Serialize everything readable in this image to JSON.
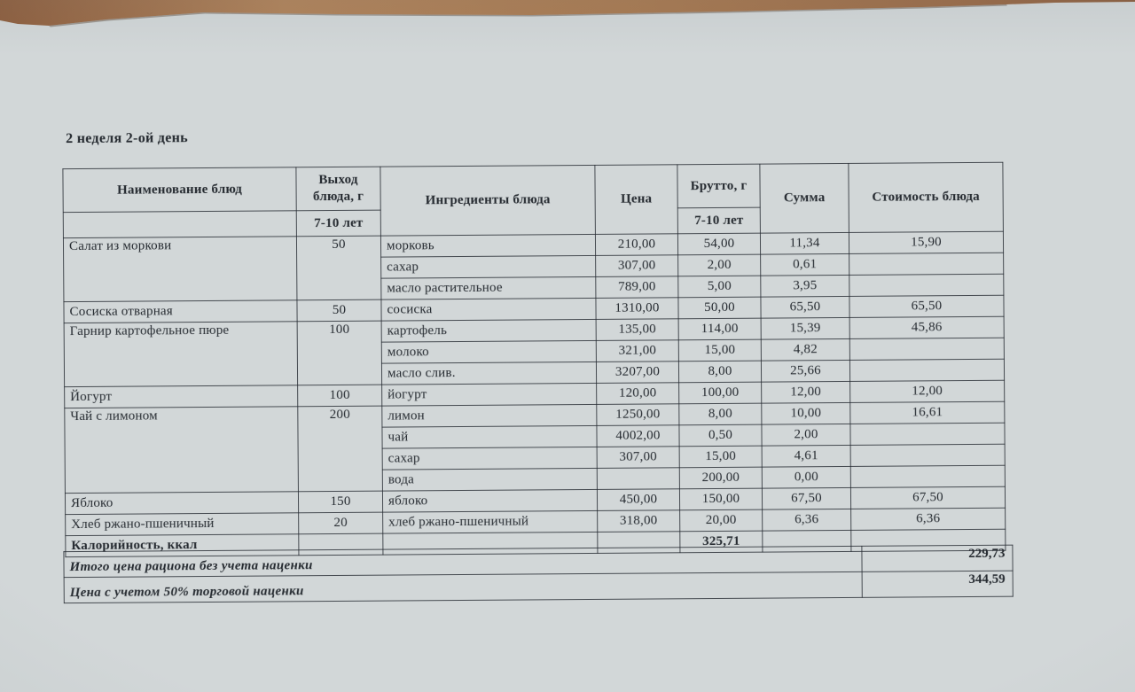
{
  "page_title": "2 неделя 2-ой день",
  "table": {
    "headers": {
      "name": "Наименование блюд",
      "name_sub": "",
      "output": "Выход блюда, г",
      "age_output": "7-10 лет",
      "ingredients": "Ингредиенты блюда",
      "price": "Цена",
      "gross": "Брутто, г",
      "age_gross": "7-10 лет",
      "sum": "Сумма",
      "dish_cost": "Стоимость блюда"
    },
    "rows": [
      {
        "cells": [
          {
            "t": "Салат из моркови",
            "rs": 3,
            "cls": "name vtop"
          },
          {
            "t": "50",
            "rs": 3,
            "cls": "cnum vtop"
          },
          {
            "t": "морковь",
            "cls": "ing"
          },
          {
            "t": "210,00",
            "cls": "cnum"
          },
          {
            "t": "54,00",
            "cls": "cnum"
          },
          {
            "t": "11,34",
            "cls": "cnum"
          },
          {
            "t": "15,90",
            "cls": "cnum"
          }
        ]
      },
      {
        "cells": [
          {
            "t": "сахар",
            "cls": "ing"
          },
          {
            "t": "307,00",
            "cls": "cnum"
          },
          {
            "t": "2,00",
            "cls": "cnum"
          },
          {
            "t": "0,61",
            "cls": "cnum"
          },
          {
            "t": "",
            "cls": "cnum"
          }
        ]
      },
      {
        "cells": [
          {
            "t": "масло растительное",
            "cls": "ing"
          },
          {
            "t": "789,00",
            "cls": "cnum"
          },
          {
            "t": "5,00",
            "cls": "cnum"
          },
          {
            "t": "3,95",
            "cls": "cnum"
          },
          {
            "t": "",
            "cls": "cnum"
          }
        ]
      },
      {
        "cells": [
          {
            "t": "Сосиска отварная",
            "cls": "name"
          },
          {
            "t": "50",
            "cls": "cnum"
          },
          {
            "t": "сосиска",
            "cls": "ing"
          },
          {
            "t": "1310,00",
            "cls": "cnum"
          },
          {
            "t": "50,00",
            "cls": "cnum"
          },
          {
            "t": "65,50",
            "cls": "cnum"
          },
          {
            "t": "65,50",
            "cls": "cnum"
          }
        ]
      },
      {
        "cells": [
          {
            "t": "Гарнир картофельное пюре",
            "rs": 3,
            "cls": "name vtop"
          },
          {
            "t": "100",
            "rs": 3,
            "cls": "cnum vtop"
          },
          {
            "t": "картофель",
            "cls": "ing"
          },
          {
            "t": "135,00",
            "cls": "cnum"
          },
          {
            "t": "114,00",
            "cls": "cnum"
          },
          {
            "t": "15,39",
            "cls": "cnum"
          },
          {
            "t": "45,86",
            "cls": "cnum"
          }
        ]
      },
      {
        "cells": [
          {
            "t": "молоко",
            "cls": "ing"
          },
          {
            "t": "321,00",
            "cls": "cnum"
          },
          {
            "t": "15,00",
            "cls": "cnum"
          },
          {
            "t": "4,82",
            "cls": "cnum"
          },
          {
            "t": "",
            "cls": "cnum"
          }
        ]
      },
      {
        "cells": [
          {
            "t": "масло слив.",
            "cls": "ing"
          },
          {
            "t": "3207,00",
            "cls": "cnum"
          },
          {
            "t": "8,00",
            "cls": "cnum"
          },
          {
            "t": "25,66",
            "cls": "cnum"
          },
          {
            "t": "",
            "cls": "cnum"
          }
        ]
      },
      {
        "cells": [
          {
            "t": "Йогурт",
            "cls": "name"
          },
          {
            "t": "100",
            "cls": "cnum"
          },
          {
            "t": "йогурт",
            "cls": "ing"
          },
          {
            "t": "120,00",
            "cls": "cnum"
          },
          {
            "t": "100,00",
            "cls": "cnum"
          },
          {
            "t": "12,00",
            "cls": "cnum"
          },
          {
            "t": "12,00",
            "cls": "cnum"
          }
        ]
      },
      {
        "cells": [
          {
            "t": "Чай с лимоном",
            "rs": 4,
            "cls": "name vtop"
          },
          {
            "t": "200",
            "rs": 4,
            "cls": "cnum vtop"
          },
          {
            "t": "лимон",
            "cls": "ing"
          },
          {
            "t": "1250,00",
            "cls": "cnum"
          },
          {
            "t": "8,00",
            "cls": "cnum"
          },
          {
            "t": "10,00",
            "cls": "cnum"
          },
          {
            "t": "16,61",
            "cls": "cnum"
          }
        ]
      },
      {
        "cells": [
          {
            "t": "чай",
            "cls": "ing"
          },
          {
            "t": "4002,00",
            "cls": "cnum"
          },
          {
            "t": "0,50",
            "cls": "cnum"
          },
          {
            "t": "2,00",
            "cls": "cnum"
          },
          {
            "t": "",
            "cls": "cnum"
          }
        ]
      },
      {
        "cells": [
          {
            "t": "сахар",
            "cls": "ing"
          },
          {
            "t": "307,00",
            "cls": "cnum"
          },
          {
            "t": "15,00",
            "cls": "cnum"
          },
          {
            "t": "4,61",
            "cls": "cnum"
          },
          {
            "t": "",
            "cls": "cnum"
          }
        ]
      },
      {
        "cells": [
          {
            "t": "вода",
            "cls": "ing"
          },
          {
            "t": "",
            "cls": "cnum"
          },
          {
            "t": "200,00",
            "cls": "cnum"
          },
          {
            "t": "0,00",
            "cls": "cnum"
          },
          {
            "t": "",
            "cls": "cnum"
          }
        ]
      },
      {
        "cells": [
          {
            "t": "Яблоко",
            "cls": "name"
          },
          {
            "t": "150",
            "cls": "cnum"
          },
          {
            "t": "яблоко",
            "cls": "ing"
          },
          {
            "t": "450,00",
            "cls": "cnum"
          },
          {
            "t": "150,00",
            "cls": "cnum"
          },
          {
            "t": "67,50",
            "cls": "cnum"
          },
          {
            "t": "67,50",
            "cls": "cnum"
          }
        ]
      },
      {
        "cells": [
          {
            "t": "Хлеб ржано-пшеничный",
            "cls": "name"
          },
          {
            "t": "20",
            "cls": "cnum"
          },
          {
            "t": "хлеб ржано-пшеничный",
            "cls": "ing"
          },
          {
            "t": "318,00",
            "cls": "cnum"
          },
          {
            "t": "20,00",
            "cls": "cnum"
          },
          {
            "t": "6,36",
            "cls": "cnum"
          },
          {
            "t": "6,36",
            "cls": "cnum"
          }
        ]
      },
      {
        "cells": [
          {
            "t": "Калорийность, ккал",
            "cls": "name bold"
          },
          {
            "t": "",
            "cls": "cnum"
          },
          {
            "t": "",
            "cls": "ing"
          },
          {
            "t": "",
            "cls": "cnum"
          },
          {
            "t": "325,71",
            "cls": "cnum bold"
          },
          {
            "t": "",
            "cls": "cnum"
          },
          {
            "t": "",
            "cls": "cnum"
          }
        ]
      }
    ]
  },
  "totals": {
    "rows": [
      {
        "label": "Итого цена рациона без учета наценки",
        "value": "229,73"
      },
      {
        "label": "Цена с учетом 50% торговой наценки",
        "value": "344,59"
      }
    ]
  },
  "colors": {
    "paper": "#d2d7d8",
    "wood_edge": "#a3714d",
    "table_line": "#2b3138",
    "text": "#262b31"
  }
}
